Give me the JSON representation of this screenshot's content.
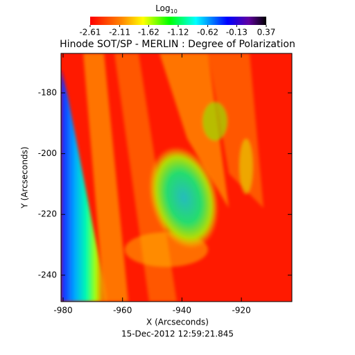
{
  "chart_data": {
    "type": "heatmap",
    "title": "Hinode SOT/SP - MERLIN : Degree of Polarization",
    "x_label": "X (Arcseconds)",
    "y_label": "Y (Arcseconds)",
    "footer": "15-Dec-2012 12:59:21.845",
    "colorbar_label": "Log",
    "colorbar_label_subscript": "10",
    "colorbar_lim": [
      -2.61,
      0.37
    ],
    "colorbar_ticks": [
      -2.61,
      -2.11,
      -1.62,
      -1.12,
      -0.62,
      -0.13,
      0.37
    ],
    "xlim": [
      -980.7,
      -903
    ],
    "xticks": [
      -980,
      -960,
      -940,
      -920
    ],
    "ylim": [
      -248.7,
      -167
    ],
    "yticks": [
      -180,
      -200,
      -220,
      -240
    ]
  }
}
